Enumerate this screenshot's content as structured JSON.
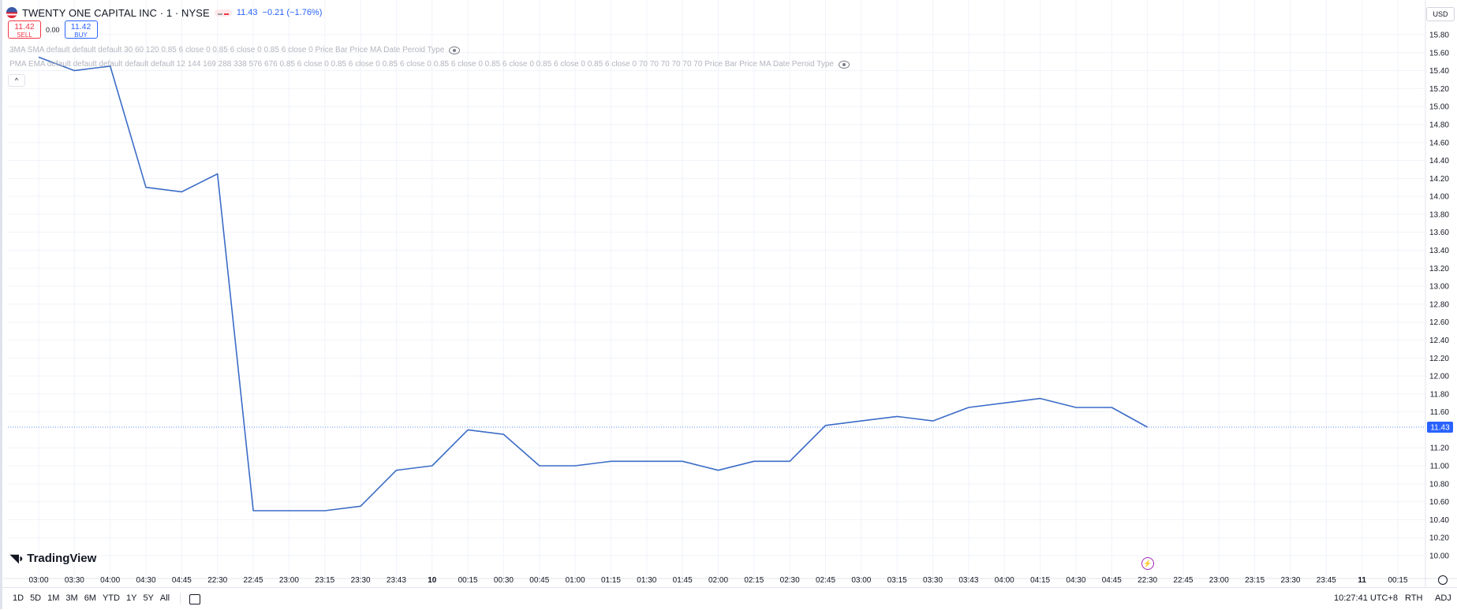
{
  "header": {
    "title": "TWENTY ONE CAPITAL INC · 1 · NYSE",
    "price": "11.43",
    "change": "−0.21 (−1.76%)"
  },
  "trade": {
    "sell_price": "11.42",
    "sell_label": "SELL",
    "spread": "0.00",
    "buy_price": "11.42",
    "buy_label": "BUY"
  },
  "indicators": [
    "3MA SMA default default default 30 60 120 0.85 6 close 0 0.85 6 close 0 0.85 6 close 0 Price Bar Price MA Date Peroid Type",
    "PMA EMA default default default default default 12 144 169 288 338 576 676 0.85 6 close 0 0.85 6 close 0 0.85 6 close 0 0.85 6 close 0 0.85 6 close 0 0.85 6 close 0 0.85 6 close 0 70 70 70 70 70 70 Price Bar Price MA Date Peroid Type"
  ],
  "collapse_label": "^",
  "currency": "USD",
  "logo": "TradingView",
  "ranges": [
    "1D",
    "5D",
    "1M",
    "3M",
    "6M",
    "YTD",
    "1Y",
    "5Y",
    "All"
  ],
  "status": {
    "time": "10:27:41 UTC+8",
    "session": "RTH",
    "adj": "ADJ"
  },
  "colors": {
    "line": "#3b6cc7",
    "last_price_bg": "#2962ff",
    "sell": "#f23645",
    "buy": "#2962ff"
  },
  "chart_data": {
    "type": "line",
    "symbol": "TWENTY ONE CAPITAL INC",
    "interval": "1",
    "exchange": "NYSE",
    "last_price": 11.43,
    "ylim": [
      9.9,
      16.0
    ],
    "y_ticks": [
      15.8,
      15.6,
      15.4,
      15.2,
      15.0,
      14.8,
      14.6,
      14.4,
      14.2,
      14.0,
      13.8,
      13.6,
      13.4,
      13.2,
      13.0,
      12.8,
      12.6,
      12.4,
      12.2,
      12.0,
      11.8,
      11.6,
      11.2,
      11.0,
      10.8,
      10.6,
      10.4,
      10.2,
      10.0
    ],
    "x_ticks": [
      "03:00",
      "03:30",
      "04:00",
      "04:30",
      "04:45",
      "22:30",
      "22:45",
      "23:00",
      "23:15",
      "23:30",
      "23:43",
      "10",
      "00:15",
      "00:30",
      "00:45",
      "01:00",
      "01:15",
      "01:30",
      "01:45",
      "02:00",
      "02:15",
      "02:30",
      "02:45",
      "03:00",
      "03:15",
      "03:30",
      "03:43",
      "04:00",
      "04:15",
      "04:30",
      "04:45",
      "22:30",
      "22:45",
      "23:00",
      "23:15",
      "23:30",
      "23:45",
      "11",
      "00:15"
    ],
    "bold_ticks": [
      "10",
      "11"
    ],
    "x": [
      "03:00",
      "03:30",
      "04:00",
      "04:30",
      "04:45",
      "22:30",
      "22:45",
      "23:00",
      "23:15",
      "23:30",
      "23:43",
      "00:00",
      "00:15",
      "00:30",
      "00:45",
      "01:00",
      "01:15",
      "01:30",
      "01:45",
      "02:00",
      "02:15",
      "02:30",
      "02:45",
      "03:00",
      "03:15",
      "03:30",
      "03:43",
      "04:00",
      "04:15",
      "04:30",
      "04:45",
      "22:30"
    ],
    "series": [
      {
        "values": [
          15.55,
          15.4,
          15.45,
          14.1,
          14.05,
          14.25,
          10.5,
          10.5,
          10.5,
          10.55,
          10.95,
          11.0,
          11.4,
          11.35,
          11.0,
          11.0,
          11.05,
          11.05,
          11.05,
          10.95,
          11.05,
          11.05,
          11.45,
          11.5,
          11.55,
          11.5,
          11.65,
          11.7,
          11.75,
          11.65,
          11.65,
          11.43
        ]
      }
    ]
  }
}
